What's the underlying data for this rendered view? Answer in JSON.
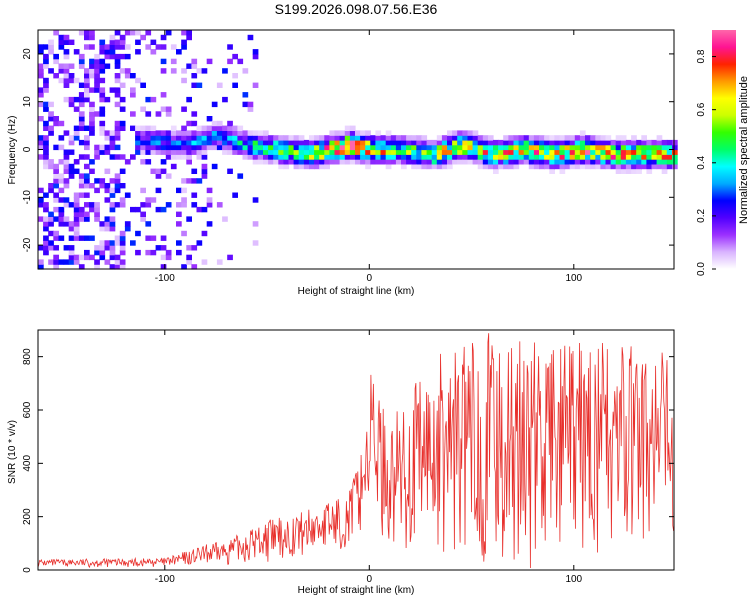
{
  "title": "S199.2026.098.07.56.E36",
  "chart_data": [
    {
      "type": "heatmap",
      "name": "spectrogram",
      "xlabel": "Height of straight line (km)",
      "ylabel": "Frequency (Hz)",
      "xlim": [
        -162,
        149
      ],
      "ylim": [
        -25,
        25
      ],
      "xticks": [
        -100,
        0,
        100
      ],
      "xtick_labels": [
        "-100",
        "0",
        "100"
      ],
      "yticks": [
        -20,
        -10,
        0,
        10,
        20
      ],
      "ytick_labels": [
        "-20",
        "-10",
        "0",
        "10",
        "20"
      ],
      "colorbar": {
        "label": "Normalized spectral amplitude",
        "range": [
          0.0,
          0.9
        ],
        "ticks": [
          0.0,
          0.2,
          0.4,
          0.6,
          0.8
        ],
        "tick_labels": [
          "0.0",
          "0.2",
          "0.4",
          "0.6",
          "0.8"
        ],
        "colors": [
          "#ffffff",
          "#d9b3ff",
          "#9b30ff",
          "#5000ff",
          "#0000ff",
          "#00aaff",
          "#00ffff",
          "#00ff66",
          "#33ff00",
          "#ccff00",
          "#ffff00",
          "#ff9900",
          "#ff2200",
          "#ff1493",
          "#ff66aa"
        ]
      },
      "noise_region_x": [
        -162,
        -55
      ],
      "ridge": {
        "x": [
          -110,
          -90,
          -75,
          -60,
          -45,
          -30,
          -20,
          -10,
          0,
          15,
          30,
          45,
          60,
          75,
          90,
          105,
          120,
          135,
          149
        ],
        "frequency": [
          2,
          1,
          3,
          1,
          0,
          -1,
          0,
          1,
          0,
          0,
          -1,
          1,
          -1,
          0,
          -1,
          0,
          -1,
          -1,
          -1
        ],
        "amplitude": [
          0.25,
          0.3,
          0.3,
          0.4,
          0.5,
          0.55,
          0.8,
          0.85,
          0.7,
          0.5,
          0.6,
          0.65,
          0.6,
          0.65,
          0.7,
          0.75,
          0.7,
          0.7,
          0.6
        ]
      }
    },
    {
      "type": "line",
      "name": "snr",
      "xlabel": "Height of straight line (km)",
      "ylabel": "SNR (10 * v/v)",
      "xlim": [
        -162,
        149
      ],
      "ylim": [
        0,
        900
      ],
      "xticks": [
        -100,
        0,
        100
      ],
      "xtick_labels": [
        "-100",
        "0",
        "100"
      ],
      "yticks": [
        0,
        200,
        400,
        600,
        800
      ],
      "ytick_labels": [
        "0",
        "200",
        "400",
        "600",
        "800"
      ],
      "color": "#e8302c",
      "envelope_x": [
        -162,
        -100,
        -90,
        -80,
        -70,
        -60,
        -50,
        -40,
        -30,
        -20,
        -10,
        -5,
        0,
        1,
        5,
        10,
        20,
        30,
        40,
        50,
        60,
        70,
        80,
        90,
        100,
        110,
        120,
        130,
        140,
        149
      ],
      "envelope_max": [
        40,
        45,
        70,
        95,
        110,
        150,
        190,
        200,
        230,
        260,
        300,
        420,
        660,
        760,
        650,
        560,
        680,
        790,
        850,
        870,
        900,
        860,
        860,
        870,
        840,
        900,
        870,
        860,
        840,
        820
      ],
      "envelope_min": [
        10,
        10,
        12,
        15,
        20,
        25,
        30,
        40,
        50,
        60,
        80,
        120,
        200,
        300,
        150,
        50,
        10,
        5,
        5,
        5,
        5,
        5,
        5,
        5,
        5,
        5,
        5,
        5,
        5,
        5
      ]
    }
  ]
}
